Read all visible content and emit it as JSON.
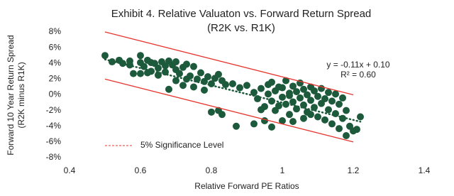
{
  "chart_data": {
    "type": "scatter",
    "title": [
      "Exhibit 4. Relative Valuaton vs. Forward Return Spread",
      "(R2K vs. R1K)"
    ],
    "xlabel": "Relative Forward PE Ratios",
    "ylabel": [
      "Forward 10 Year Return Spread",
      "(R2K minus R1K)"
    ],
    "annotations": [
      "y = -0.11x + 0.10",
      "R² = 0.60"
    ],
    "xlim": [
      0.4,
      1.4
    ],
    "xticks": [
      0.4,
      0.6,
      0.8,
      1,
      1.2,
      1.4
    ],
    "ylim": [
      -8,
      8
    ],
    "yticks": [
      {
        "value": -8,
        "label": "-8%"
      },
      {
        "value": -6,
        "label": "-6%"
      },
      {
        "value": -4,
        "label": "-4%"
      },
      {
        "value": -2,
        "label": "-2%"
      },
      {
        "value": 0,
        "label": "0%"
      },
      {
        "value": 2,
        "label": "2%"
      },
      {
        "value": 4,
        "label": "4%"
      },
      {
        "value": 6,
        "label": "6%"
      },
      {
        "value": 8,
        "label": "8%"
      }
    ],
    "grid": false,
    "legend": "bottom-left",
    "series": [
      {
        "mode": "markers",
        "color": "#1d5a3c",
        "x": [
          0.5,
          0.52,
          0.54,
          0.55,
          0.57,
          0.57,
          0.6,
          0.6,
          0.61,
          0.62,
          0.63,
          0.63,
          0.64,
          0.65,
          0.66,
          0.67,
          0.67,
          0.68,
          0.69,
          0.7,
          0.7,
          0.71,
          0.72,
          0.73,
          0.74,
          0.75,
          0.76,
          0.77,
          0.78,
          0.79,
          0.8,
          0.81,
          0.82,
          0.83,
          0.84,
          0.6,
          0.62,
          0.65,
          0.58,
          0.7,
          0.73,
          0.68,
          0.72,
          0.75,
          0.78,
          0.8,
          0.82,
          0.83,
          0.86,
          0.88,
          0.9,
          0.87,
          0.92,
          0.95,
          0.97,
          0.92,
          0.93,
          0.94,
          0.95,
          0.96,
          0.96,
          0.97,
          0.98,
          0.98,
          0.99,
          1.0,
          1.0,
          1.01,
          1.01,
          1.02,
          1.02,
          1.03,
          1.03,
          1.04,
          1.04,
          1.05,
          1.05,
          1.06,
          1.06,
          1.07,
          1.07,
          1.08,
          1.08,
          1.09,
          1.09,
          1.1,
          1.1,
          1.11,
          1.11,
          1.12,
          1.12,
          1.13,
          1.13,
          1.14,
          1.14,
          1.15,
          1.15,
          1.16,
          1.16,
          1.17,
          1.17,
          1.18,
          1.18,
          1.19,
          1.2,
          1.21,
          1.22,
          0.94,
          0.97,
          1.0,
          1.03,
          1.06,
          0.99,
          1.02,
          1.08
        ],
        "values": [
          5.0,
          4.2,
          4.4,
          4.0,
          3.8,
          4.3,
          5.0,
          4.1,
          3.6,
          4.4,
          3.0,
          4.1,
          4.0,
          3.4,
          4.2,
          2.9,
          3.7,
          4.3,
          3.8,
          3.2,
          4.2,
          2.7,
          3.5,
          3.9,
          2.4,
          3.6,
          2.0,
          2.8,
          1.7,
          2.3,
          1.4,
          2.1,
          2.6,
          1.8,
          1.3,
          2.7,
          2.8,
          2.5,
          2.7,
          1.8,
          2.0,
          0.7,
          1.2,
          1.0,
          0.6,
          -2.2,
          -2.0,
          -2.5,
          1.4,
          0.9,
          1.2,
          -4.0,
          -3.7,
          -3.3,
          -4.1,
          0.3,
          -0.5,
          0.8,
          -1.5,
          0.1,
          1.3,
          -0.8,
          0.5,
          -2.0,
          1.0,
          -0.3,
          0.9,
          -1.2,
          1.8,
          0.2,
          -2.5,
          -0.9,
          1.1,
          0.4,
          -1.8,
          -0.4,
          1.5,
          -1.3,
          0.7,
          -2.2,
          0.0,
          1.0,
          -0.7,
          -1.6,
          0.5,
          -0.2,
          -2.8,
          0.8,
          -1.1,
          -0.5,
          -3.2,
          0.3,
          -1.9,
          -0.8,
          -3.7,
          0.1,
          -2.4,
          -1.2,
          -4.3,
          -0.4,
          -3.0,
          -2.0,
          -5.2,
          -4.0,
          -4.6,
          -4.4,
          -2.8,
          -1.9,
          1.6,
          -3.3,
          -3.4,
          -3.0,
          -1.4,
          -0.1,
          -2.5
        ]
      },
      {
        "mode": "lines",
        "name": "5% Significance Level",
        "color": "#e8352f",
        "x": [
          0.5,
          1.2
        ],
        "values": [
          8,
          0
        ]
      },
      {
        "mode": "lines",
        "color": "#e8352f",
        "x": [
          0.5,
          1.2
        ],
        "values": [
          2,
          -6
        ]
      },
      {
        "mode": "lines",
        "dash": "dotted",
        "color": "#1d5a3c",
        "x": [
          0.5,
          1.22
        ],
        "values": [
          4.5,
          -3.42
        ]
      }
    ]
  }
}
